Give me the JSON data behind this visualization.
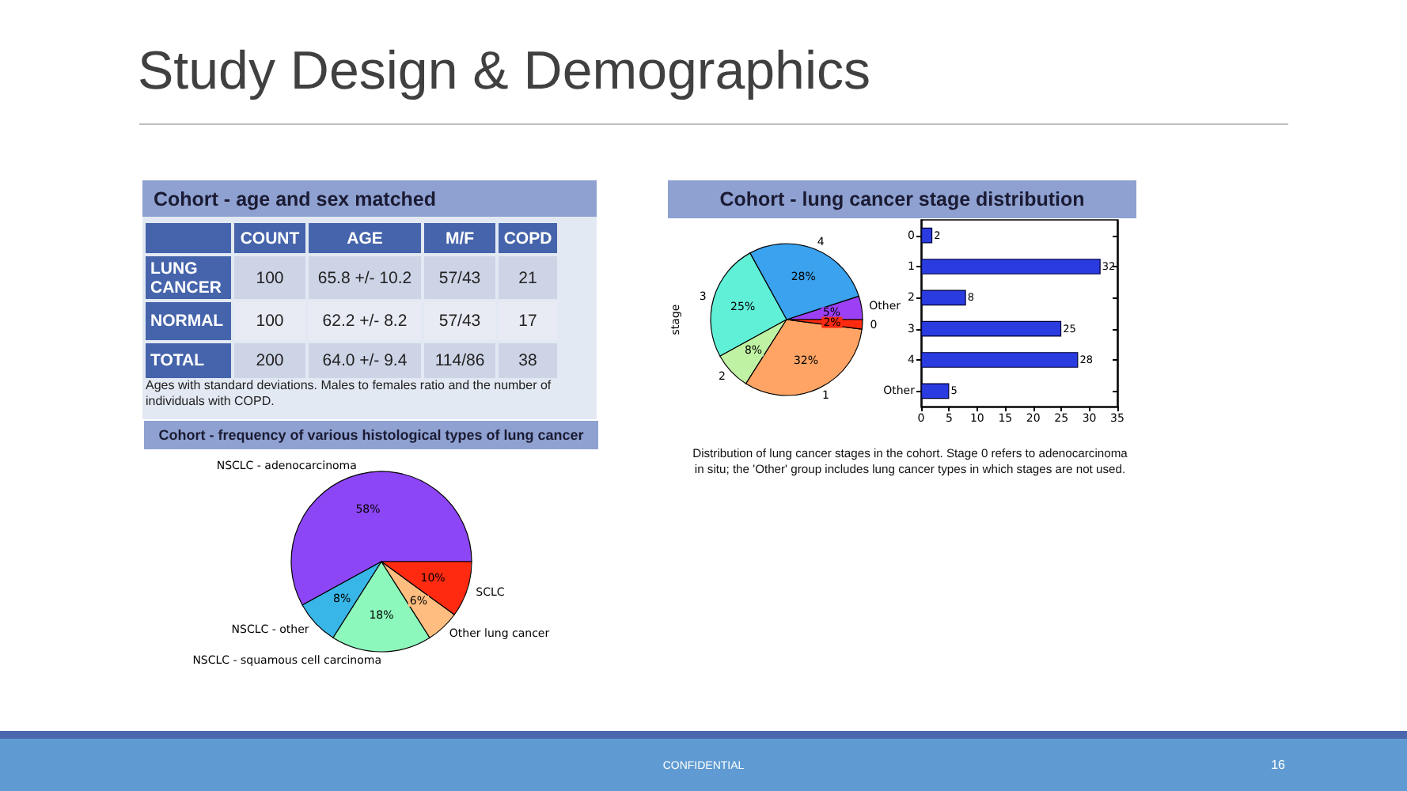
{
  "chart_data": [
    {
      "type": "other",
      "title": "Study Design & Demographics",
      "annotations": [
        "CONFIDENTIAL",
        "16"
      ]
    },
    {
      "type": "other",
      "title": "Cohort - age and sex matched",
      "categories": [
        "COUNT",
        "AGE",
        "M/F",
        "COPD"
      ],
      "y_categories": [
        "LUNG CANCER",
        "NORMAL",
        "TOTAL"
      ],
      "cell_labels": [
        [
          "100",
          "65.8 +/- 10.2",
          "57/43",
          "21"
        ],
        [
          "100",
          "62.2 +/- 8.2",
          "57/43",
          "17"
        ],
        [
          "200",
          "64.0 +/- 9.4",
          "114/86",
          "38"
        ]
      ],
      "annotations": [
        "Ages with standard deviations. Males to females ratio and the number of individuals with COPD."
      ]
    },
    {
      "type": "pie",
      "title": "Cohort - lung cancer stage distribution",
      "ylabel": "stage",
      "categories": [
        "Other",
        "4",
        "3",
        "2",
        "1",
        "0"
      ],
      "values": [
        5,
        28,
        25,
        8,
        32,
        2
      ],
      "value_labels": [
        "5%",
        "28%",
        "25%",
        "8%",
        "32%",
        "2%"
      ],
      "colors": [
        "#9b40f5",
        "#3aa2ee",
        "#60f0d8",
        "#c0f2a4",
        "#ffa464",
        "#ff2a10"
      ],
      "annotations": [
        "Distribution of lung cancer stages in the cohort. Stage 0 refers to adenocarcinoma in situ; the 'Other' group includes lung cancer types in which stages are not used."
      ]
    },
    {
      "type": "bar",
      "orientation": "horizontal",
      "categories": [
        "0",
        "1",
        "2",
        "3",
        "4",
        "Other"
      ],
      "values": [
        2,
        32,
        8,
        25,
        28,
        5
      ],
      "color": "#2a3be0",
      "xlim": [
        0,
        35
      ],
      "xticks": [
        0,
        5,
        10,
        15,
        20,
        25,
        30,
        35
      ],
      "data_labels": true
    },
    {
      "type": "pie",
      "title": "Cohort - frequency of various histological types of lung cancer",
      "categories": [
        "NSCLC - adenocarcinoma",
        "NSCLC - other",
        "NSCLC - squamous cell carcinoma",
        "Other lung cancer",
        "SCLC"
      ],
      "values": [
        58,
        8,
        18,
        6,
        10
      ],
      "value_labels": [
        "58%",
        "8%",
        "18%",
        "6%",
        "10%"
      ],
      "colors": [
        "#8d46f6",
        "#38b6e8",
        "#8cf8bc",
        "#ffbe80",
        "#ff2a10"
      ]
    }
  ]
}
